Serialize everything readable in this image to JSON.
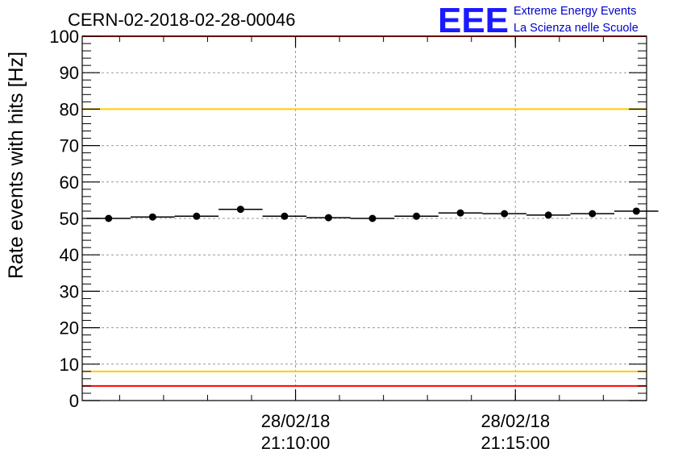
{
  "header": {
    "run_title": "CERN-02-2018-02-28-00046"
  },
  "logo": {
    "acronym": "EEE",
    "line1": "Extreme Energy Events",
    "line2": "La Scienza nelle Scuole",
    "color": "#1a1aff",
    "text_color": "#0000cc"
  },
  "chart_data": {
    "type": "scatter",
    "ylabel": "Rate events with hits [Hz]",
    "ylim": [
      0,
      100
    ],
    "xlim": [
      "2018-02-28 21:05:09",
      "2018-02-28 21:17:59"
    ],
    "grid": true,
    "y_ticks": [
      0,
      10,
      20,
      30,
      40,
      50,
      60,
      70,
      80,
      90,
      100
    ],
    "x_ticks": [
      {
        "x": "2018-02-28 21:10:00",
        "date_label": "28/02/18",
        "time_label": "21:10:00"
      },
      {
        "x": "2018-02-28 21:15:00",
        "date_label": "28/02/18",
        "time_label": "21:15:00"
      }
    ],
    "bin_width_seconds": 60,
    "series": [
      {
        "x": [
          "2018-02-28 21:05:45",
          "2018-02-28 21:06:45",
          "2018-02-28 21:07:45",
          "2018-02-28 21:08:45",
          "2018-02-28 21:09:45",
          "2018-02-28 21:10:45",
          "2018-02-28 21:11:45",
          "2018-02-28 21:12:45",
          "2018-02-28 21:13:45",
          "2018-02-28 21:14:45",
          "2018-02-28 21:15:45",
          "2018-02-28 21:16:45",
          "2018-02-28 21:17:45"
        ],
        "y": [
          50.0,
          50.4,
          50.6,
          52.5,
          50.6,
          50.2,
          50.0,
          50.6,
          51.5,
          51.3,
          50.9,
          51.3,
          52.0
        ]
      }
    ],
    "reference_lines": [
      {
        "y": 100,
        "color": "#ff0000"
      },
      {
        "y": 80,
        "color": "#ffcc00"
      },
      {
        "y": 8,
        "color": "#ffcc00"
      },
      {
        "y": 4,
        "color": "#ff0000"
      }
    ]
  }
}
